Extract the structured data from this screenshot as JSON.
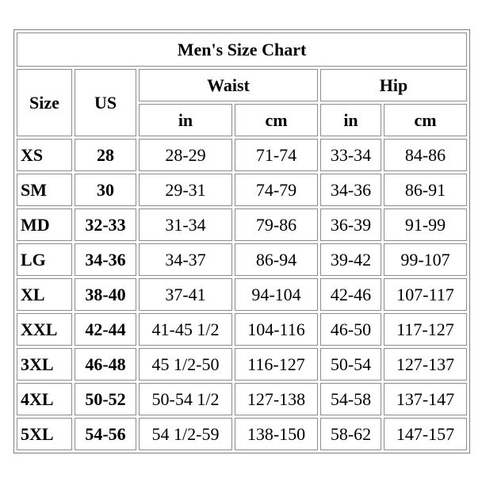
{
  "title": "Men's Size Chart",
  "header": {
    "size": "Size",
    "us": "US",
    "waist": "Waist",
    "hip": "Hip",
    "waist_units": [
      "in",
      "cm"
    ],
    "hip_units": [
      "in",
      "cm"
    ]
  },
  "rows": [
    [
      "XS",
      "28",
      "28-29",
      "71-74",
      "33-34",
      "84-86"
    ],
    [
      "SM",
      "30",
      "29-31",
      "74-79",
      "34-36",
      "86-91"
    ],
    [
      "MD",
      "32-33",
      "31-34",
      "79-86",
      "36-39",
      "91-99"
    ],
    [
      "LG",
      "34-36",
      "34-37",
      "86-94",
      "39-42",
      "99-107"
    ],
    [
      "XL",
      "38-40",
      "37-41",
      "94-104",
      "42-46",
      "107-117"
    ],
    [
      "XXL",
      "42-44",
      "41-45 1/2",
      "104-116",
      "46-50",
      "117-127"
    ],
    [
      "3XL",
      "46-48",
      "45 1/2-50",
      "116-127",
      "50-54",
      "127-137"
    ],
    [
      "4XL",
      "50-52",
      "50-54 1/2",
      "127-138",
      "54-58",
      "137-147"
    ],
    [
      "5XL",
      "54-56",
      "54 1/2-59",
      "138-150",
      "58-62",
      "147-157"
    ]
  ]
}
